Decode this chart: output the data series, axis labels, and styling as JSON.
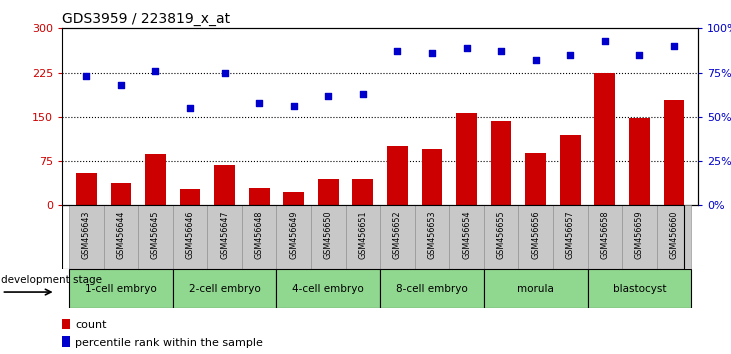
{
  "title": "GDS3959 / 223819_x_at",
  "samples": [
    "GSM456643",
    "GSM456644",
    "GSM456645",
    "GSM456646",
    "GSM456647",
    "GSM456648",
    "GSM456649",
    "GSM456650",
    "GSM456651",
    "GSM456652",
    "GSM456653",
    "GSM456654",
    "GSM456655",
    "GSM456656",
    "GSM456657",
    "GSM456658",
    "GSM456659",
    "GSM456660"
  ],
  "counts": [
    55,
    38,
    87,
    28,
    68,
    30,
    22,
    45,
    45,
    100,
    95,
    157,
    143,
    88,
    120,
    225,
    148,
    178
  ],
  "percentiles": [
    73,
    68,
    76,
    55,
    75,
    58,
    56,
    62,
    63,
    87,
    86,
    89,
    87,
    82,
    85,
    93,
    85,
    90
  ],
  "bar_color": "#cc0000",
  "dot_color": "#0000cc",
  "ylim_left": [
    0,
    300
  ],
  "ylim_right": [
    0,
    100
  ],
  "yticks_left": [
    0,
    75,
    150,
    225,
    300
  ],
  "yticks_right": [
    0,
    25,
    50,
    75,
    100
  ],
  "ytick_labels_right": [
    "0%",
    "25%",
    "50%",
    "75%",
    "100%"
  ],
  "hlines": [
    75,
    150,
    225
  ],
  "stages": [
    {
      "label": "1-cell embryo",
      "start": 0,
      "end": 3
    },
    {
      "label": "2-cell embryo",
      "start": 3,
      "end": 6
    },
    {
      "label": "4-cell embryo",
      "start": 6,
      "end": 9
    },
    {
      "label": "8-cell embryo",
      "start": 9,
      "end": 12
    },
    {
      "label": "morula",
      "start": 12,
      "end": 15
    },
    {
      "label": "blastocyst",
      "start": 15,
      "end": 18
    }
  ],
  "stage_green": "#90d890",
  "sample_bg_color": "#c8c8c8",
  "legend_count_color": "#cc0000",
  "legend_dot_color": "#0000cc"
}
